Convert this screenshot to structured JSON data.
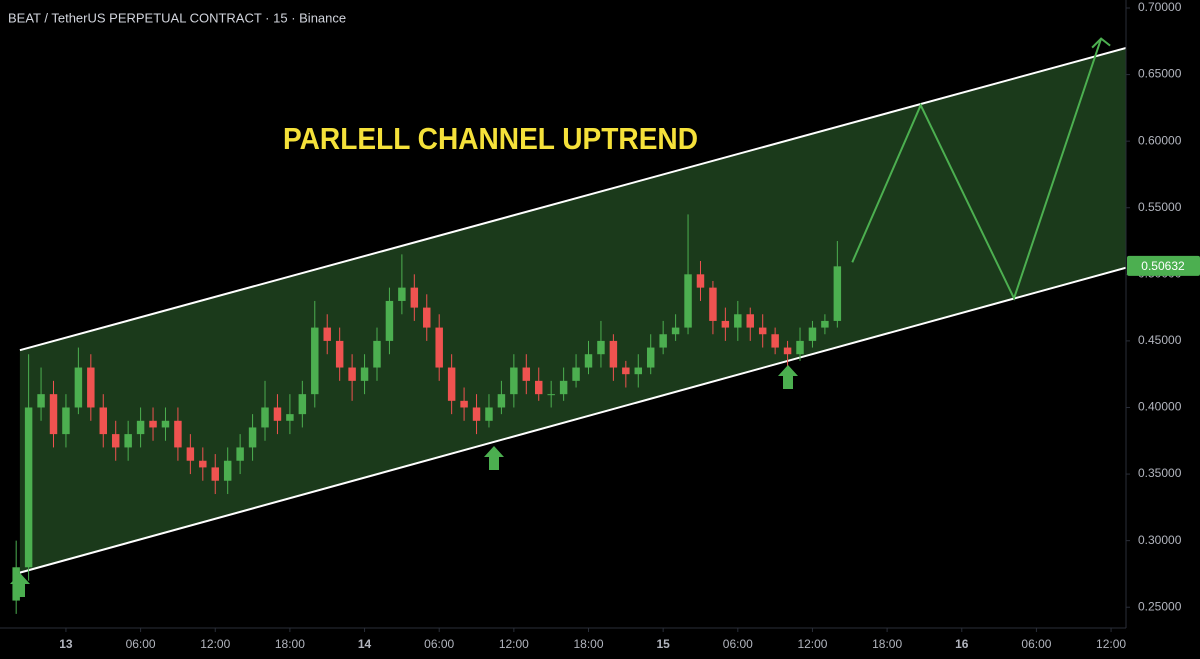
{
  "chart_data": {
    "type": "candlestick",
    "title": "BEAT / TetherUS PERPETUAL CONTRACT · 15 · Binance",
    "annotation": "PARLELL CHANNEL UPTREND",
    "x": [
      -4,
      -3,
      -2,
      -1,
      0,
      1,
      2,
      3,
      4,
      5,
      6,
      7,
      8,
      9,
      10,
      11,
      12,
      13,
      14,
      15,
      16,
      17,
      18,
      19,
      20,
      21,
      22,
      23,
      24,
      25,
      26,
      27,
      28,
      29,
      30,
      31,
      32,
      33,
      34,
      35,
      36,
      37,
      38,
      39,
      40,
      41,
      42,
      43,
      44,
      45,
      46,
      47,
      48,
      49,
      50,
      51,
      52,
      53,
      54,
      55,
      56,
      57,
      58,
      59,
      60,
      61,
      62
    ],
    "open": [
      0.255,
      0.28,
      0.4,
      0.41,
      0.38,
      0.4,
      0.43,
      0.4,
      0.38,
      0.37,
      0.38,
      0.39,
      0.385,
      0.39,
      0.37,
      0.36,
      0.355,
      0.345,
      0.36,
      0.37,
      0.385,
      0.4,
      0.39,
      0.395,
      0.41,
      0.46,
      0.45,
      0.43,
      0.42,
      0.43,
      0.45,
      0.48,
      0.49,
      0.475,
      0.46,
      0.43,
      0.405,
      0.4,
      0.39,
      0.4,
      0.41,
      0.43,
      0.42,
      0.41,
      0.41,
      0.42,
      0.43,
      0.44,
      0.45,
      0.43,
      0.425,
      0.43,
      0.445,
      0.455,
      0.46,
      0.5,
      0.49,
      0.465,
      0.46,
      0.47,
      0.46,
      0.455,
      0.445,
      0.44,
      0.45,
      0.46,
      0.465
    ],
    "high": [
      0.3,
      0.44,
      0.43,
      0.42,
      0.41,
      0.445,
      0.44,
      0.41,
      0.39,
      0.39,
      0.4,
      0.4,
      0.4,
      0.4,
      0.38,
      0.37,
      0.365,
      0.37,
      0.38,
      0.395,
      0.42,
      0.41,
      0.41,
      0.42,
      0.48,
      0.47,
      0.46,
      0.44,
      0.44,
      0.46,
      0.49,
      0.515,
      0.5,
      0.485,
      0.47,
      0.44,
      0.415,
      0.41,
      0.41,
      0.42,
      0.44,
      0.44,
      0.43,
      0.42,
      0.43,
      0.44,
      0.45,
      0.465,
      0.455,
      0.435,
      0.44,
      0.455,
      0.465,
      0.47,
      0.545,
      0.51,
      0.495,
      0.475,
      0.48,
      0.475,
      0.47,
      0.46,
      0.45,
      0.46,
      0.465,
      0.47,
      0.525
    ],
    "low": [
      0.245,
      0.27,
      0.39,
      0.37,
      0.37,
      0.395,
      0.39,
      0.37,
      0.36,
      0.36,
      0.37,
      0.375,
      0.375,
      0.36,
      0.35,
      0.345,
      0.335,
      0.335,
      0.35,
      0.36,
      0.375,
      0.38,
      0.38,
      0.385,
      0.4,
      0.44,
      0.42,
      0.405,
      0.41,
      0.42,
      0.44,
      0.47,
      0.465,
      0.45,
      0.42,
      0.395,
      0.39,
      0.38,
      0.385,
      0.395,
      0.4,
      0.41,
      0.405,
      0.4,
      0.405,
      0.415,
      0.425,
      0.43,
      0.42,
      0.415,
      0.415,
      0.425,
      0.44,
      0.45,
      0.455,
      0.48,
      0.455,
      0.45,
      0.45,
      0.45,
      0.445,
      0.44,
      0.43,
      0.435,
      0.445,
      0.455,
      0.46
    ],
    "close": [
      0.28,
      0.4,
      0.41,
      0.38,
      0.4,
      0.43,
      0.4,
      0.38,
      0.37,
      0.38,
      0.39,
      0.385,
      0.39,
      0.37,
      0.36,
      0.355,
      0.345,
      0.36,
      0.37,
      0.385,
      0.4,
      0.39,
      0.395,
      0.41,
      0.46,
      0.45,
      0.43,
      0.42,
      0.43,
      0.45,
      0.48,
      0.49,
      0.475,
      0.46,
      0.43,
      0.405,
      0.4,
      0.39,
      0.4,
      0.41,
      0.43,
      0.42,
      0.41,
      0.41,
      0.42,
      0.43,
      0.44,
      0.45,
      0.43,
      0.425,
      0.43,
      0.445,
      0.455,
      0.46,
      0.5,
      0.49,
      0.465,
      0.46,
      0.47,
      0.46,
      0.455,
      0.445,
      0.44,
      0.45,
      0.46,
      0.465,
      0.506
    ],
    "up_color": "#4caf50",
    "down_color": "#ef5350",
    "channel_upper": {
      "x": [
        -3.7,
        85.2
      ],
      "y": [
        0.443,
        0.67
      ]
    },
    "channel_lower": {
      "x": [
        -3.7,
        85.2
      ],
      "y": [
        0.276,
        0.505
      ]
    },
    "projection": {
      "x": [
        63.2,
        68.7,
        76.2,
        83.2
      ],
      "y": [
        0.509,
        0.627,
        0.482,
        0.677
      ],
      "color": "#4caf50"
    },
    "last_price": {
      "value": 0.50632,
      "label": "0.50632"
    },
    "xlim": [
      -5.3,
      85.2
    ],
    "ylim": [
      0.2344,
      0.706
    ],
    "xticks": [
      {
        "value": 0,
        "label": "13"
      },
      {
        "value": 6,
        "label": "06:00"
      },
      {
        "value": 12,
        "label": "12:00"
      },
      {
        "value": 18,
        "label": "18:00"
      },
      {
        "value": 24,
        "label": "14"
      },
      {
        "value": 30,
        "label": "06:00"
      },
      {
        "value": 36,
        "label": "12:00"
      },
      {
        "value": 42,
        "label": "18:00"
      },
      {
        "value": 48,
        "label": "15"
      },
      {
        "value": 54,
        "label": "06:00"
      },
      {
        "value": 60,
        "label": "12:00"
      },
      {
        "value": 66,
        "label": "18:00"
      },
      {
        "value": 72,
        "label": "16"
      },
      {
        "value": 78,
        "label": "06:00"
      },
      {
        "value": 84,
        "label": "12:00"
      }
    ],
    "yticks": [
      {
        "value": 0.25,
        "label": "0.25000"
      },
      {
        "value": 0.3,
        "label": "0.30000"
      },
      {
        "value": 0.35,
        "label": "0.35000"
      },
      {
        "value": 0.4,
        "label": "0.40000"
      },
      {
        "value": 0.45,
        "label": "0.45000"
      },
      {
        "value": 0.5,
        "label": "0.50000"
      },
      {
        "value": 0.55,
        "label": "0.55000"
      },
      {
        "value": 0.6,
        "label": "0.60000"
      },
      {
        "value": 0.65,
        "label": "0.65000"
      },
      {
        "value": 0.7,
        "label": "0.70000"
      }
    ]
  }
}
